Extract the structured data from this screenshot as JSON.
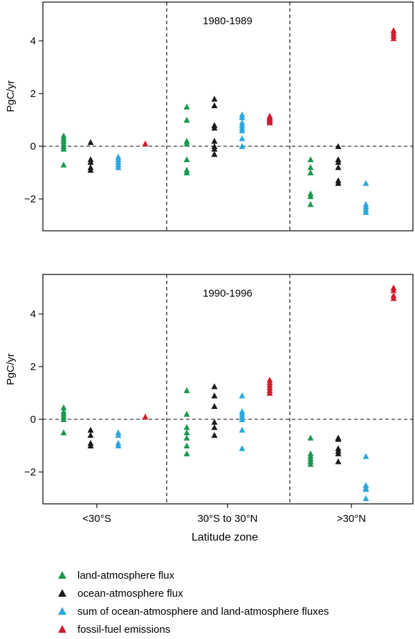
{
  "chart_data": [
    {
      "type": "scatter",
      "title": "1980-1989",
      "ylabel": "PgC/yr",
      "ylim": [
        -3.2,
        5.4
      ],
      "yticks": [
        -2,
        0,
        2,
        4
      ],
      "zones": [
        "<30°S",
        "30°S to 30°N",
        ">30°N"
      ],
      "series": [
        {
          "name": "land-atmosphere flux",
          "zone_values": [
            [
              0.4,
              0.3,
              0.2,
              0.1,
              0.0,
              -0.1,
              -0.7
            ],
            [
              1.5,
              1.0,
              0.2,
              0.1,
              -0.5,
              -0.9,
              -1.0
            ],
            [
              -0.5,
              -0.8,
              -1.0,
              -1.8,
              -1.9,
              -2.2
            ]
          ]
        },
        {
          "name": "ocean-atmosphere flux",
          "zone_values": [
            [
              0.15,
              -0.5,
              -0.6,
              -0.8,
              -0.9
            ],
            [
              1.8,
              1.55,
              0.8,
              0.7,
              0.2,
              0.0,
              -0.1,
              -0.3
            ],
            [
              0.0,
              -0.5,
              -0.6,
              -0.8,
              -1.3,
              -1.4
            ]
          ]
        },
        {
          "name": "sum of ocean-atmosphere and land-atmosphere fluxes",
          "zone_values": [
            [
              -0.4,
              -0.5,
              -0.6,
              -0.7,
              -0.8
            ],
            [
              1.2,
              1.1,
              0.9,
              0.8,
              0.7,
              0.6,
              0.3,
              0.0
            ],
            [
              -1.4,
              -2.2,
              -2.3,
              -2.4,
              -2.5
            ]
          ]
        },
        {
          "name": "fossil-fuel emissions",
          "zone_values": [
            [
              0.1
            ],
            [
              1.15,
              1.1,
              1.05,
              1.0,
              0.95,
              0.9
            ],
            [
              4.4,
              4.3,
              4.2,
              4.1
            ]
          ]
        }
      ]
    },
    {
      "type": "scatter",
      "title": "1990-1996",
      "ylabel": "PgC/yr",
      "ylim": [
        -3.2,
        5.4
      ],
      "yticks": [
        -2,
        0,
        2,
        4
      ],
      "zones": [
        "<30°S",
        "30°S to 30°N",
        ">30°N"
      ],
      "series": [
        {
          "name": "land-atmosphere flux",
          "zone_values": [
            [
              0.45,
              0.3,
              0.2,
              0.1,
              0.0,
              -0.5
            ],
            [
              1.1,
              0.2,
              -0.3,
              -0.5,
              -0.7,
              -1.0,
              -1.3
            ],
            [
              -0.7,
              -1.3,
              -1.4,
              -1.5,
              -1.6,
              -1.7
            ]
          ]
        },
        {
          "name": "ocean-atmosphere flux",
          "zone_values": [
            [
              -0.4,
              -0.6,
              -0.9,
              -1.0
            ],
            [
              1.25,
              0.9,
              0.5,
              -0.1,
              -0.3,
              -0.6
            ],
            [
              -0.7,
              -0.75,
              -1.1,
              -1.2,
              -1.3,
              -1.6
            ]
          ]
        },
        {
          "name": "sum of ocean-atmosphere and land-atmosphere fluxes",
          "zone_values": [
            [
              -0.5,
              -0.6,
              -0.9,
              -1.0
            ],
            [
              0.9,
              0.3,
              0.2,
              0.1,
              0.0,
              -0.4,
              -1.1
            ],
            [
              -1.4,
              -2.5,
              -2.6,
              -2.65,
              -3.0
            ]
          ]
        },
        {
          "name": "fossil-fuel emissions",
          "zone_values": [
            [
              0.1
            ],
            [
              1.5,
              1.4,
              1.3,
              1.2,
              1.1,
              1.0
            ],
            [
              5.0,
              4.9,
              4.7,
              4.6
            ]
          ]
        }
      ]
    }
  ],
  "xlabel": "Latitude zone",
  "colors": {
    "land-atmosphere flux": "#1a9950",
    "ocean-atmosphere flux": "#1a1a1a",
    "sum of ocean-atmosphere and land-atmosphere fluxes": "#29a8e0",
    "fossil-fuel emissions": "#d11b2d"
  },
  "marker": "triangle",
  "legend": {
    "placement": "bottom",
    "items": [
      "land-atmosphere flux",
      "ocean-atmosphere flux",
      "sum of ocean-atmosphere and land-atmosphere fluxes",
      "fossil-fuel emissions"
    ]
  }
}
